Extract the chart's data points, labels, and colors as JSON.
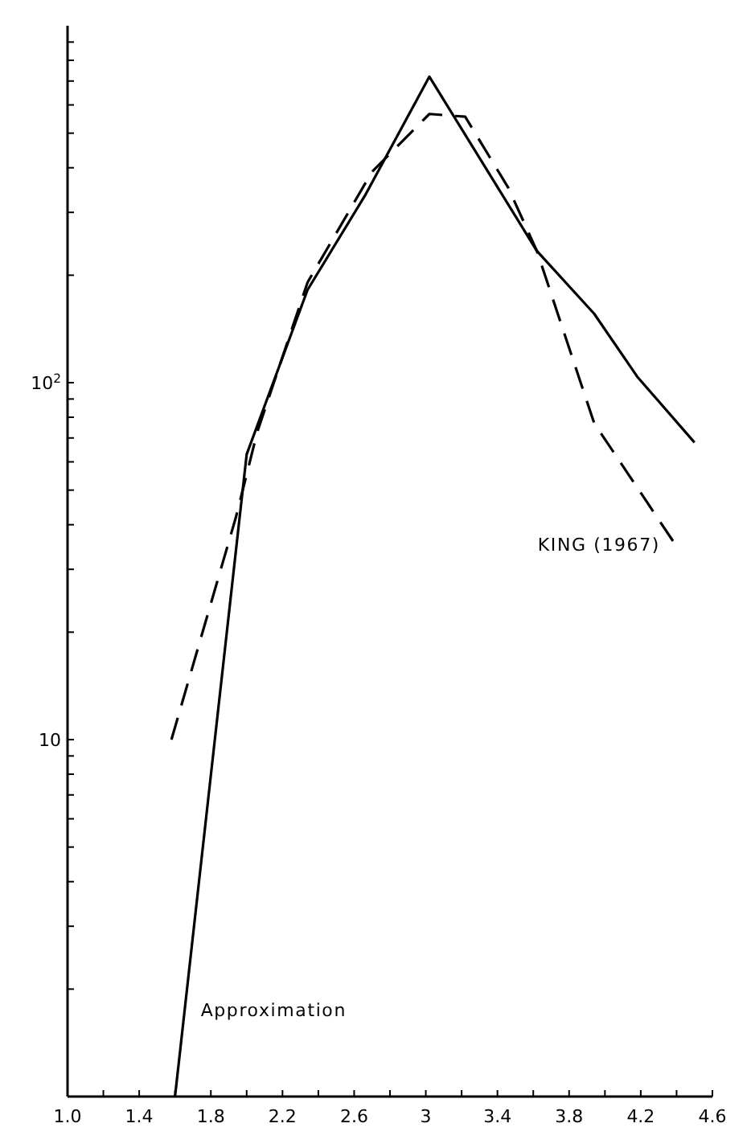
{
  "chart_data": {
    "type": "line",
    "log": "y",
    "grid": false,
    "marker": "none",
    "xlim": [
      1.0,
      4.6
    ],
    "ylim": [
      1,
      1000
    ],
    "xticks": [
      {
        "value": 1.0,
        "label": "1.0"
      },
      {
        "value": 1.2,
        "label": null
      },
      1.4,
      {
        "value": 1.6,
        "label": null
      },
      1.8,
      {
        "value": 2.0,
        "label": null
      },
      2.2,
      {
        "value": 2.4,
        "label": null
      },
      2.6,
      {
        "value": 2.8,
        "label": null
      },
      3.0,
      {
        "value": 3.2,
        "label": null
      },
      3.4,
      {
        "value": 3.6,
        "label": null
      },
      3.8,
      {
        "value": 4.0,
        "label": null
      },
      4.2,
      {
        "value": 4.4,
        "label": null
      },
      4.6
    ],
    "yticks": [
      {
        "value": 2,
        "label": null
      },
      {
        "value": 3,
        "label": null
      },
      {
        "value": 4,
        "label": null
      },
      {
        "value": 5,
        "label": null
      },
      {
        "value": 6,
        "label": null
      },
      {
        "value": 7,
        "label": null
      },
      {
        "value": 8,
        "label": null
      },
      {
        "value": 9,
        "label": null
      },
      10,
      {
        "value": 20,
        "label": null
      },
      {
        "value": 30,
        "label": null
      },
      {
        "value": 40,
        "label": null
      },
      {
        "value": 50,
        "label": null
      },
      {
        "value": 60,
        "label": null
      },
      {
        "value": 70,
        "label": null
      },
      {
        "value": 80,
        "label": null
      },
      {
        "value": 90,
        "label": null
      },
      {
        "value": 100,
        "label": "10$^{2}$"
      },
      {
        "value": 200,
        "label": null
      },
      {
        "value": 300,
        "label": null
      },
      {
        "value": 400,
        "label": null
      },
      {
        "value": 500,
        "label": null
      },
      {
        "value": 600,
        "label": null
      },
      {
        "value": 700,
        "label": null
      },
      {
        "value": 800,
        "label": null
      },
      {
        "value": 900,
        "label": null
      }
    ],
    "series": [
      {
        "name": "Approximation",
        "color": "#000000",
        "line_style": "solid",
        "x": [
          1.6,
          2.0,
          2.34,
          2.66,
          3.02,
          3.62,
          3.94,
          4.18,
          4.5
        ],
        "values": [
          1,
          63,
          182,
          334,
          720,
          234,
          156,
          104,
          68
        ]
      },
      {
        "name": "KING (1967)",
        "color": "#000000",
        "line_style": "dashed",
        "x": [
          1.58,
          1.94,
          2.06,
          2.34,
          2.7,
          3.02,
          3.22,
          3.46,
          3.62,
          3.94,
          4.38
        ],
        "values": [
          10,
          42,
          73,
          191,
          390,
          566,
          556,
          352,
          234,
          77,
          36
        ]
      }
    ]
  }
}
